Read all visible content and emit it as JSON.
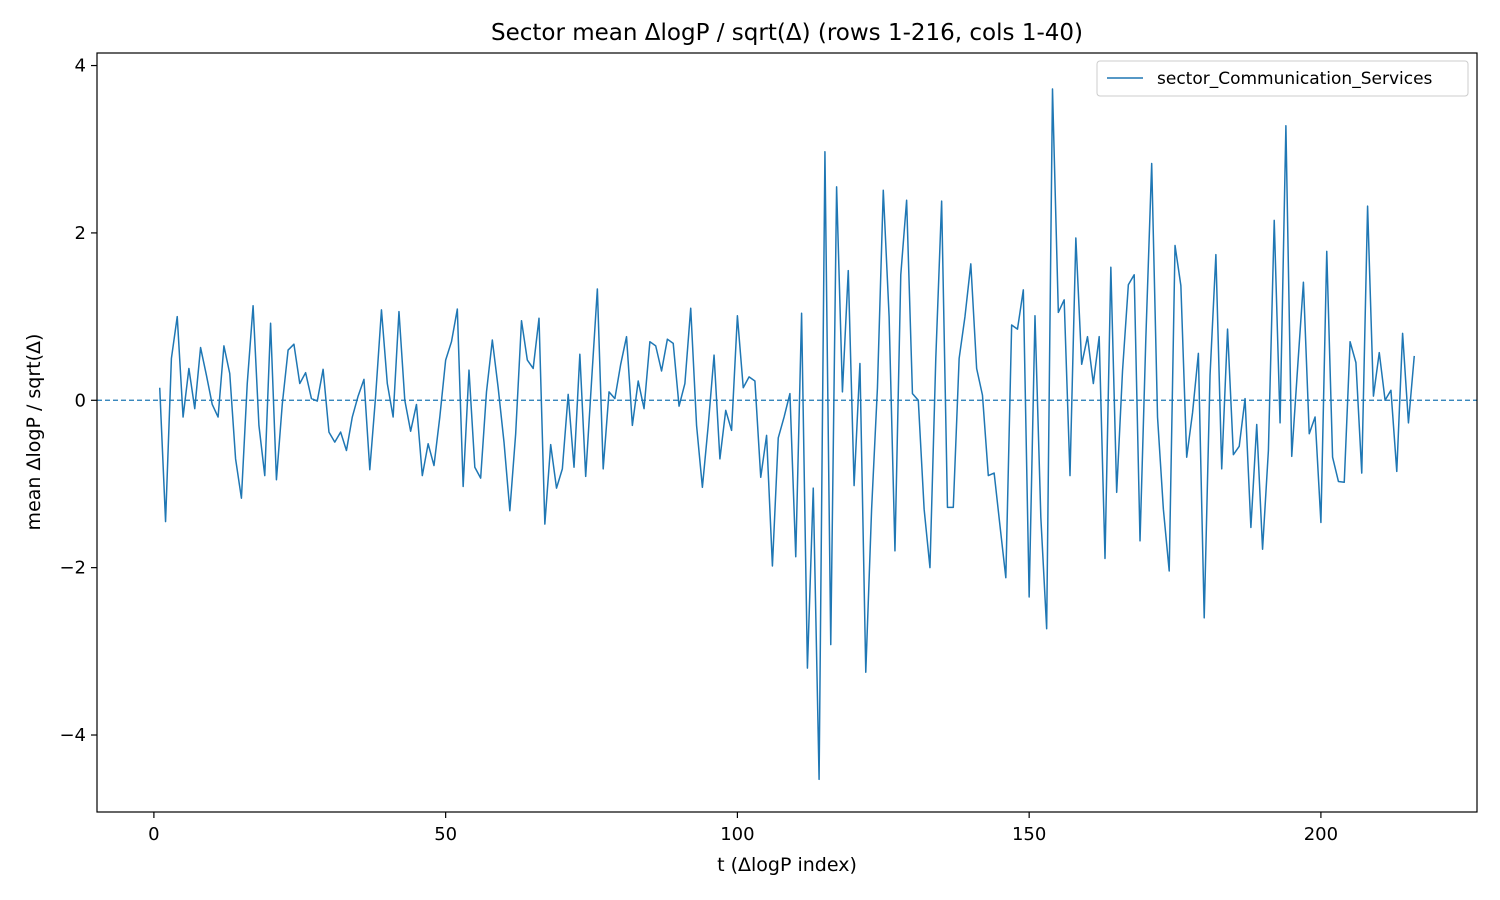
{
  "chart_data": {
    "type": "line",
    "title": "Sector mean ΔlogP / sqrt(Δ) (rows 1-216, cols 1-40)",
    "xlabel": "t (ΔlogP index)",
    "ylabel": "mean ΔlogP / sqrt(Δ)",
    "xlim": [
      -9.75,
      226.75
    ],
    "ylim": [
      -4.92,
      4.15
    ],
    "xticks": [
      0,
      50,
      100,
      150,
      200
    ],
    "yticks": [
      -4,
      -2,
      0,
      2,
      4
    ],
    "xtick_labels": [
      "0",
      "50",
      "100",
      "150",
      "200"
    ],
    "ytick_labels": [
      "−4",
      "−2",
      "0",
      "2",
      "4"
    ],
    "grid": false,
    "legend_position": "top-right",
    "reference_line": {
      "y": 0,
      "style": "dashed",
      "color": "#1f77b4"
    },
    "series": [
      {
        "name": "sector_Communication_Services",
        "color": "#1f77b4",
        "x": [
          1,
          2,
          3,
          4,
          5,
          6,
          7,
          8,
          9,
          10,
          11,
          12,
          13,
          14,
          15,
          16,
          17,
          18,
          19,
          20,
          21,
          22,
          23,
          24,
          25,
          26,
          27,
          28,
          29,
          30,
          31,
          32,
          33,
          34,
          35,
          36,
          37,
          38,
          39,
          40,
          41,
          42,
          43,
          44,
          45,
          46,
          47,
          48,
          49,
          50,
          51,
          52,
          53,
          54,
          55,
          56,
          57,
          58,
          59,
          60,
          61,
          62,
          63,
          64,
          65,
          66,
          67,
          68,
          69,
          70,
          71,
          72,
          73,
          74,
          75,
          76,
          77,
          78,
          79,
          80,
          81,
          82,
          83,
          84,
          85,
          86,
          87,
          88,
          89,
          90,
          91,
          92,
          93,
          94,
          95,
          96,
          97,
          98,
          99,
          100,
          101,
          102,
          103,
          104,
          105,
          106,
          107,
          108,
          109,
          110,
          111,
          112,
          113,
          114,
          115,
          116,
          117,
          118,
          119,
          120,
          121,
          122,
          123,
          124,
          125,
          126,
          127,
          128,
          129,
          130,
          131,
          132,
          133,
          134,
          135,
          136,
          137,
          138,
          139,
          140,
          141,
          142,
          143,
          144,
          145,
          146,
          147,
          148,
          149,
          150,
          151,
          152,
          153,
          154,
          155,
          156,
          157,
          158,
          159,
          160,
          161,
          162,
          163,
          164,
          165,
          166,
          167,
          168,
          169,
          170,
          171,
          172,
          173,
          174,
          175,
          176,
          177,
          178,
          179,
          180,
          181,
          182,
          183,
          184,
          185,
          186,
          187,
          188,
          189,
          190,
          191,
          192,
          193,
          194,
          195,
          196,
          197,
          198,
          199,
          200,
          201,
          202,
          203,
          204,
          205,
          206,
          207,
          208,
          209,
          210,
          211,
          212,
          213,
          214,
          215,
          216
        ],
        "y": [
          0.15,
          -1.45,
          0.5,
          1.0,
          -0.2,
          0.38,
          -0.1,
          0.63,
          0.3,
          -0.05,
          -0.2,
          0.65,
          0.32,
          -0.7,
          -1.17,
          0.2,
          1.13,
          -0.3,
          -0.9,
          0.92,
          -0.95,
          -0.05,
          0.6,
          0.67,
          0.2,
          0.33,
          0.02,
          -0.01,
          0.37,
          -0.38,
          -0.5,
          -0.38,
          -0.6,
          -0.2,
          0.05,
          0.25,
          -0.83,
          0.05,
          1.08,
          0.2,
          -0.2,
          1.06,
          0.0,
          -0.37,
          -0.05,
          -0.9,
          -0.52,
          -0.78,
          -0.2,
          0.48,
          0.7,
          1.09,
          -1.03,
          0.36,
          -0.8,
          -0.93,
          0.1,
          0.72,
          0.15,
          -0.5,
          -1.32,
          -0.4,
          0.95,
          0.48,
          0.38,
          0.98,
          -1.48,
          -0.53,
          -1.05,
          -0.82,
          0.07,
          -0.8,
          0.55,
          -0.91,
          0.22,
          1.33,
          -0.82,
          0.1,
          0.02,
          0.43,
          0.76,
          -0.3,
          0.23,
          -0.1,
          0.7,
          0.65,
          0.35,
          0.73,
          0.68,
          -0.07,
          0.2,
          1.1,
          -0.3,
          -1.04,
          -0.3,
          0.54,
          -0.7,
          -0.12,
          -0.36,
          1.01,
          0.15,
          0.28,
          0.23,
          -0.92,
          -0.42,
          -1.98,
          -0.45,
          -0.2,
          0.08,
          -1.87,
          1.04,
          -3.2,
          -1.05,
          -4.53,
          2.97,
          -2.92,
          2.55,
          0.1,
          1.55,
          -1.02,
          0.44,
          -3.25,
          -1.3,
          0.15,
          2.51,
          1.0,
          -1.8,
          1.5,
          2.39,
          0.08,
          0.0,
          -1.3,
          -2.0,
          0.5,
          2.38,
          -1.28,
          -1.28,
          0.5,
          1.0,
          1.63,
          0.38,
          0.06,
          -0.9,
          -0.87,
          -1.5,
          -2.12,
          0.9,
          0.85,
          1.32,
          -2.35,
          1.01,
          -1.4,
          -2.73,
          3.72,
          1.05,
          1.2,
          -0.9,
          1.94,
          0.43,
          0.76,
          0.2,
          0.76,
          -1.89,
          1.59,
          -1.1,
          0.35,
          1.38,
          1.5,
          -1.68,
          0.75,
          2.83,
          -0.2,
          -1.3,
          -2.04,
          1.85,
          1.37,
          -0.68,
          -0.15,
          0.56,
          -2.6,
          0.3,
          1.74,
          -0.82,
          0.85,
          -0.65,
          -0.55,
          0.02,
          -1.52,
          -0.29,
          -1.78,
          -0.6,
          2.15,
          -0.27,
          3.28,
          -0.67,
          0.38,
          1.41,
          -0.4,
          -0.2,
          -1.46,
          1.78,
          -0.68,
          -0.97,
          -0.98,
          0.7,
          0.45,
          -0.87,
          2.32,
          0.05,
          0.57,
          0.0,
          0.12,
          -0.85,
          0.8,
          -0.27,
          0.53
        ]
      }
    ]
  }
}
